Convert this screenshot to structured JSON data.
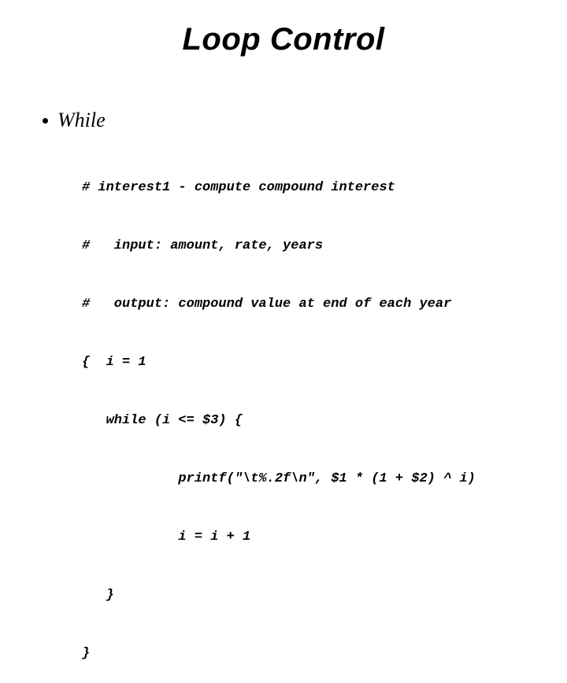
{
  "slide": {
    "title": "Loop Control",
    "bullet": "While",
    "code_lines": [
      "# interest1 - compute compound interest",
      "#   input: amount, rate, years",
      "#   output: compound value at end of each year",
      "{  i = 1",
      "   while (i <= $3) {",
      "            printf(\"\\t%.2f\\n\", $1 * (1 + $2) ^ i)",
      "            i = i + 1",
      "   }",
      "}"
    ]
  },
  "style": {
    "background_color": "#ffffff",
    "text_color": "#000000",
    "title_fontsize": 40,
    "bullet_fontsize": 26,
    "code_fontsize": 17,
    "title_font": "Impact",
    "body_font": "Georgia",
    "code_font": "Courier New"
  }
}
